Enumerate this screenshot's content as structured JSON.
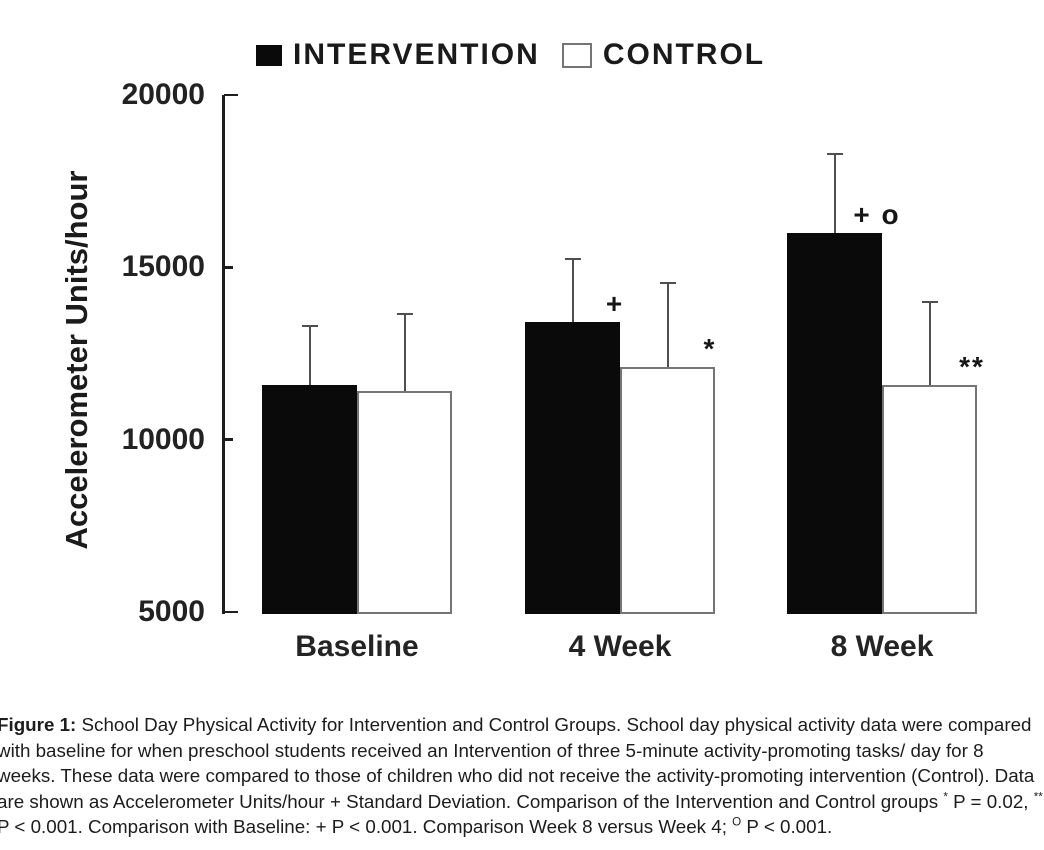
{
  "legend": {
    "items": [
      {
        "label": "INTERVENTION",
        "swatch": "filled-black"
      },
      {
        "label": "CONTROL",
        "swatch": "open-white"
      }
    ]
  },
  "chart_data": {
    "type": "bar",
    "title": "",
    "ylabel": "Accelerometer Units/hour",
    "xlabel": "",
    "categories": [
      "Baseline",
      "4 Week",
      "8 Week"
    ],
    "series": [
      {
        "name": "INTERVENTION",
        "color": "#0a0a0a",
        "values": [
          11600,
          13400,
          16000
        ],
        "sd": [
          1700,
          1850,
          2300
        ],
        "annotations": [
          "",
          "+",
          "+ o"
        ]
      },
      {
        "name": "CONTROL",
        "color": "#ffffff",
        "outline": "#757575",
        "values": [
          11400,
          12100,
          11600
        ],
        "sd": [
          2250,
          2450,
          2400
        ],
        "annotations": [
          "",
          "*",
          "**"
        ]
      }
    ],
    "ylim": [
      5000,
      20000
    ],
    "yticks": [
      5000,
      10000,
      15000,
      20000
    ],
    "grid": false,
    "legend_position": "top",
    "error_bars": "upper standard deviation only"
  },
  "caption": {
    "segments": [
      {
        "text": "Figure 1:",
        "bold": true
      },
      {
        "text": " School Day Physical Activity for Intervention and Control Groups. School day physical activity data were compared with baseline for when preschool students received an Intervention of three 5-minute activity-promoting tasks/ day for 8 weeks. These data were compared to those of children who did not receive the activity-promoting intervention (Control). Data are shown as Accelerometer Units/hour + Standard Deviation. Comparison of the Intervention and Control groups "
      },
      {
        "text": "*",
        "sup": true
      },
      {
        "text": " P = 0.02, "
      },
      {
        "text": "**",
        "sup": true
      },
      {
        "text": " P < 0.001. Comparison with Baseline: + P < 0.001. Comparison Week 8 versus Week 4; "
      },
      {
        "text": "O",
        "sup": true
      },
      {
        "text": " P < 0.001."
      }
    ]
  }
}
